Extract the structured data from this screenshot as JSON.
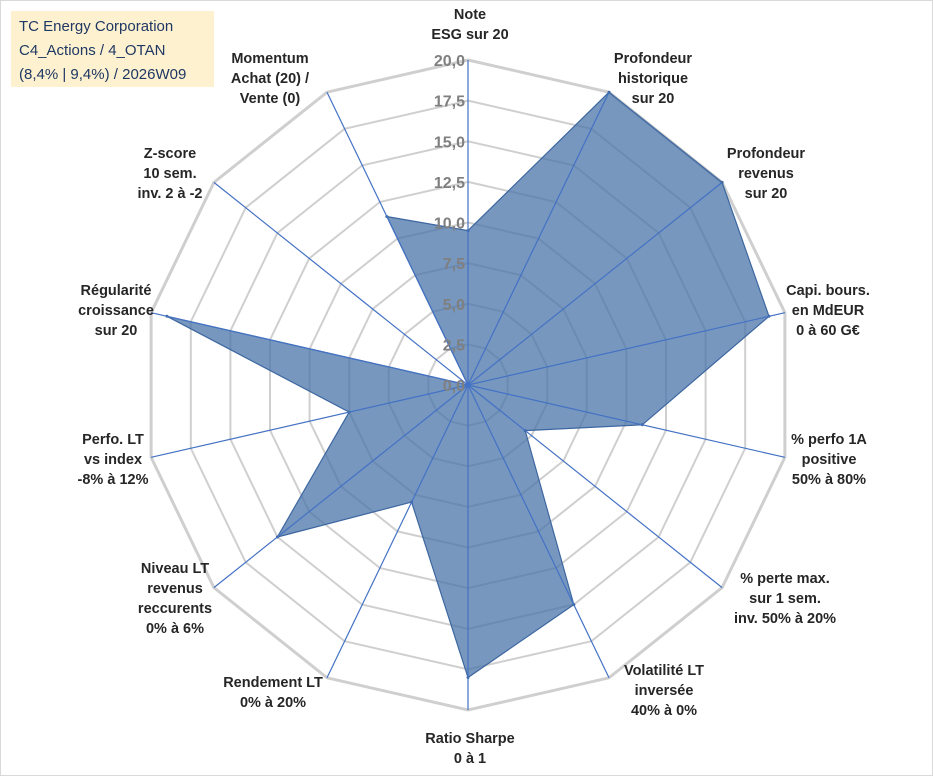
{
  "header": {
    "line1": "TC Energy Corporation",
    "line2": "C4_Actions / 4_OTAN",
    "line3": "(8,4% | 9,4%) / 2026W09"
  },
  "chart_data": {
    "type": "radar",
    "title": "TC Energy Corporation",
    "rmin": 0,
    "rmax": 20,
    "ticks": [
      0,
      2.5,
      5,
      7.5,
      10,
      12.5,
      15,
      17.5,
      20
    ],
    "tick_labels": [
      "0,0",
      "2,5",
      "5,0",
      "7,5",
      "10,0",
      "12,5",
      "15,0",
      "17,5",
      "20,0"
    ],
    "categories": [
      [
        "Note",
        "ESG sur 20"
      ],
      [
        "Profondeur",
        "historique",
        "sur 20"
      ],
      [
        "Profondeur",
        "revenus",
        "sur 20"
      ],
      [
        "Capi. bours.",
        "en MdEUR",
        "0 à 60 G€"
      ],
      [
        "% perfo 1A",
        "positive",
        "50% à 80%"
      ],
      [
        "% perte max.",
        "sur 1 sem.",
        "inv. 50% à 20%"
      ],
      [
        "Volatilité LT",
        "inversée",
        "40% à 0%"
      ],
      [
        "Ratio Sharpe",
        "0 à 1"
      ],
      [
        "Rendement LT",
        "0% à 20%"
      ],
      [
        "Niveau LT",
        "revenus",
        "reccurents",
        "0% à 6%"
      ],
      [
        "Perfo. LT",
        "vs index",
        "-8% à 12%"
      ],
      [
        "Régularité",
        "croissance",
        "sur 20"
      ],
      [
        "Z-score",
        "10 sem.",
        "inv. 2 à -2"
      ],
      [
        "Momentum",
        "Achat (20) /",
        "Vente (0)"
      ]
    ],
    "series": [
      {
        "name": "TC Energy Corporation",
        "values": [
          9.5,
          20,
          20,
          19,
          11,
          4.5,
          15,
          18,
          8,
          15,
          7.5,
          19,
          0,
          11.5
        ],
        "color": "#4a74aa"
      }
    ],
    "grid": true
  }
}
